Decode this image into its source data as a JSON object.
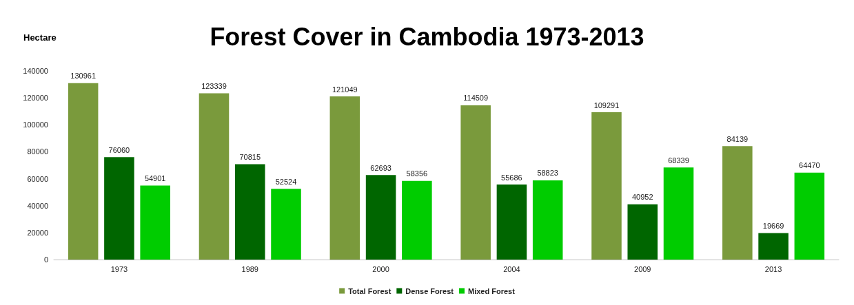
{
  "chart_data": {
    "type": "bar",
    "title": "Forest Cover in Cambodia 1973-2013",
    "ylabel": "Hectare",
    "categories": [
      "1973",
      "1989",
      "2000",
      "2004",
      "2009",
      "2013"
    ],
    "series": [
      {
        "name": "Total Forest",
        "color": "#7a9a3c",
        "values": [
          130961,
          123339,
          121049,
          114509,
          109291,
          84139
        ]
      },
      {
        "name": "Dense Forest",
        "color": "#006600",
        "values": [
          76060,
          70815,
          62693,
          55686,
          40952,
          19669
        ]
      },
      {
        "name": "Mixed Forest",
        "color": "#00cc00",
        "values": [
          54901,
          52524,
          58356,
          58823,
          68339,
          64470
        ]
      }
    ],
    "ylim": [
      0,
      140000
    ],
    "yticks": [
      0,
      20000,
      40000,
      60000,
      80000,
      100000,
      120000,
      140000
    ],
    "grid": false,
    "legend": "bottom",
    "data_labels": true
  }
}
